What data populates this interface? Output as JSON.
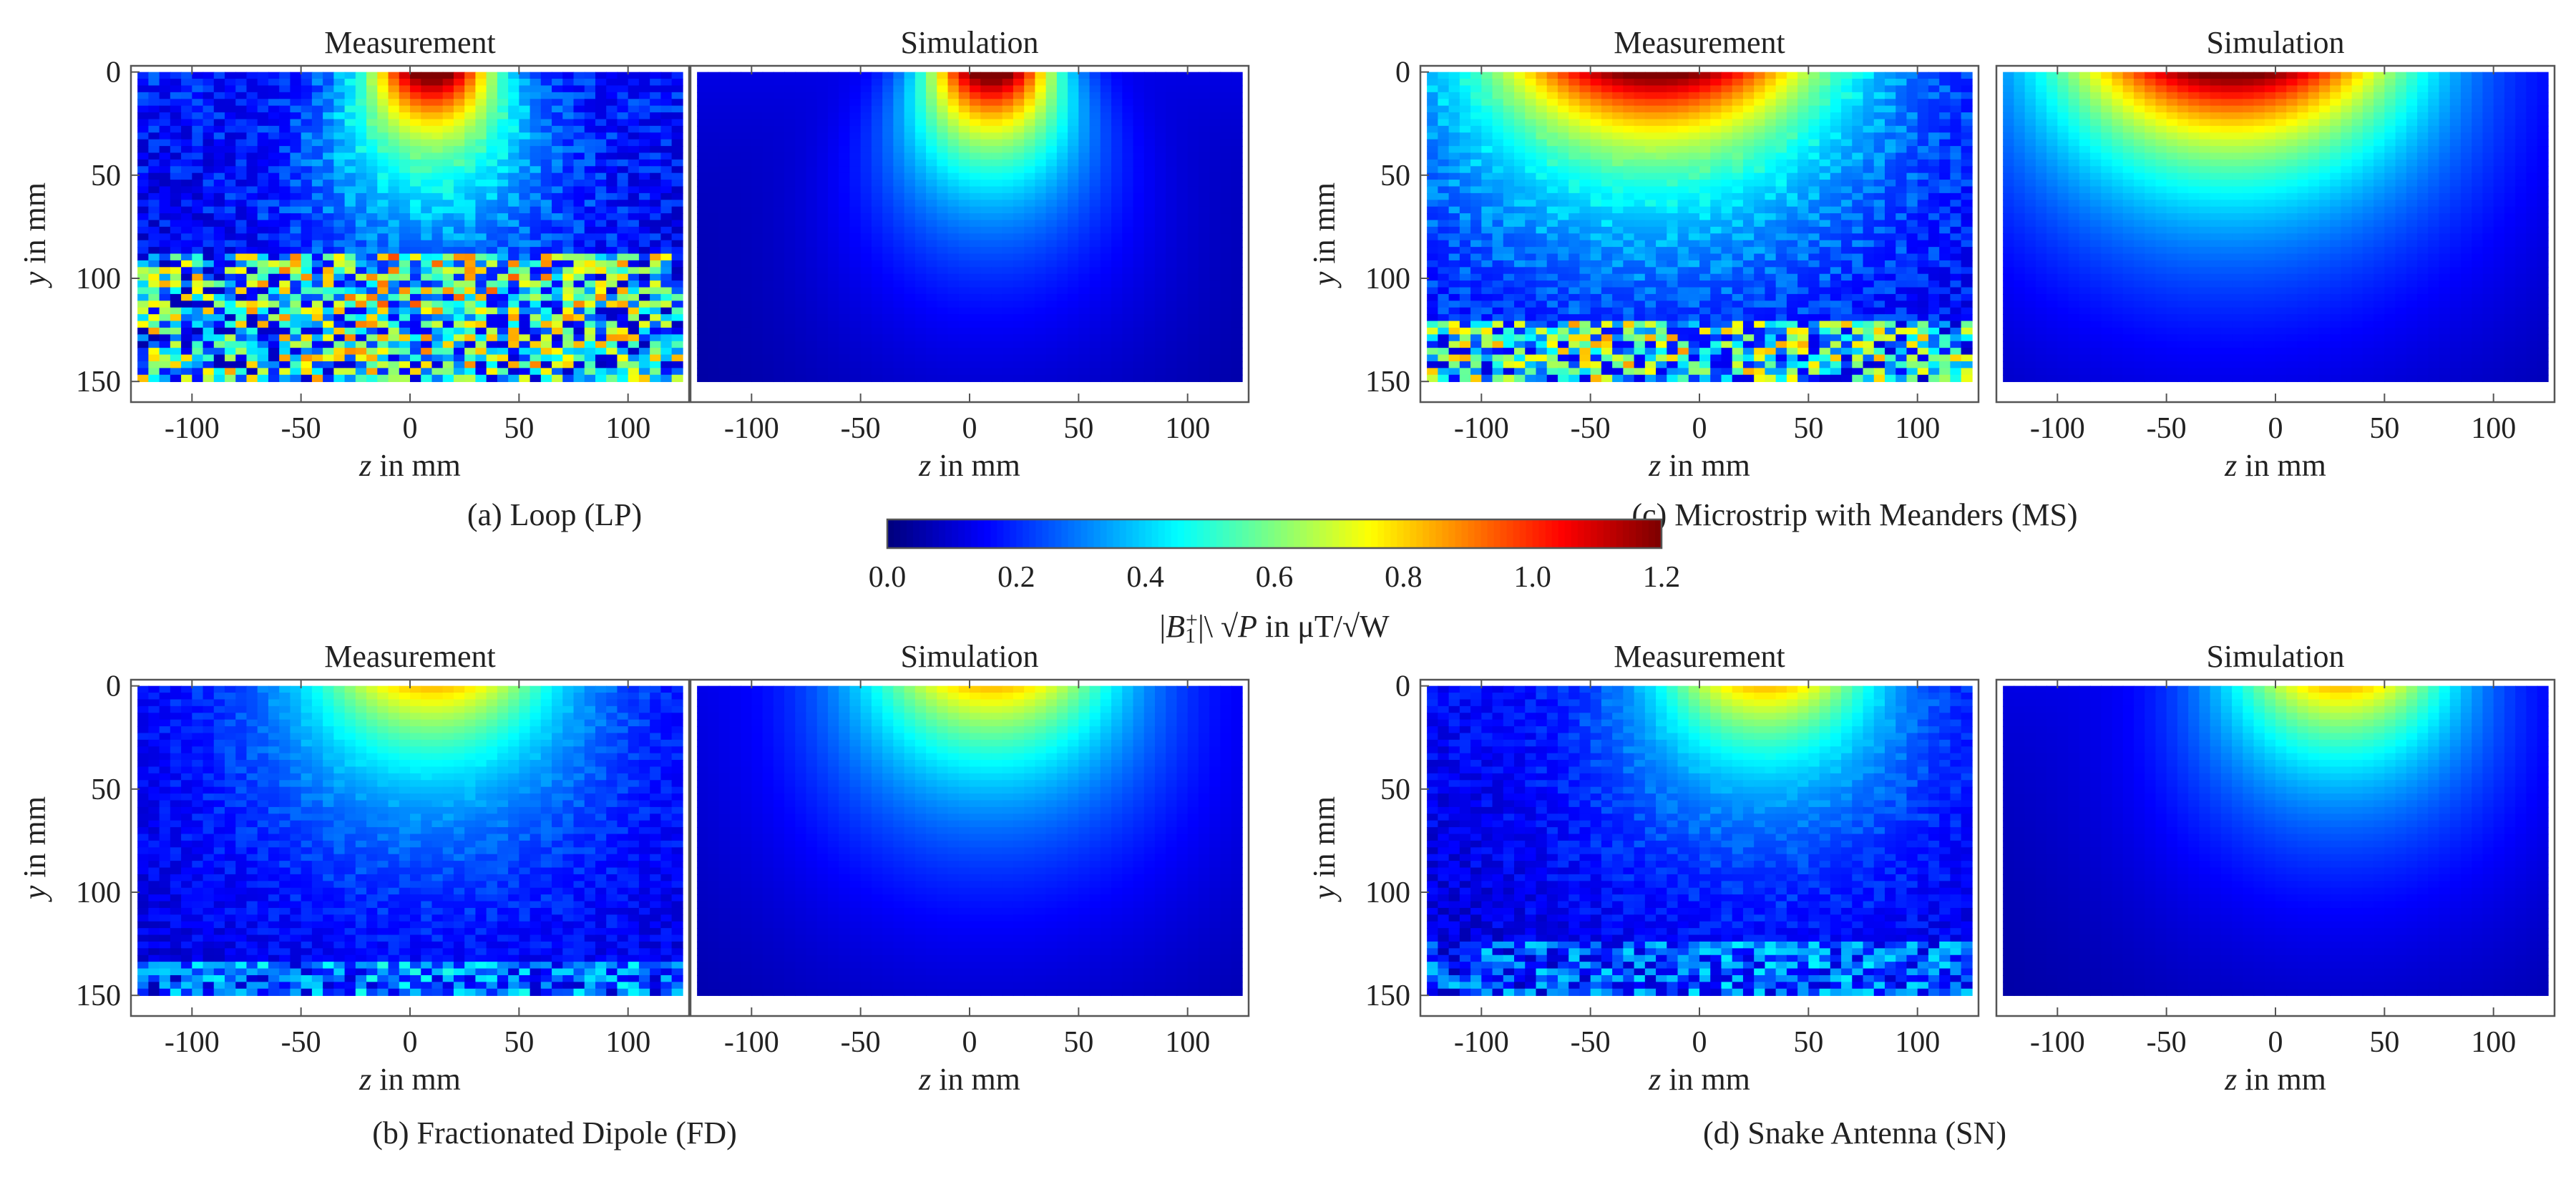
{
  "chart_data": {
    "type": "heatmap",
    "colormap": "jet",
    "colorbar": {
      "label_parts": [
        "|",
        "B",
        "1",
        "+",
        "|\\ √",
        "P",
        " in μT/√W"
      ],
      "ticks": [
        "0.0",
        "0.2",
        "0.4",
        "0.6",
        "0.8",
        "1.0",
        "1.2"
      ],
      "min": 0.0,
      "max": 1.2
    },
    "axis_labels": {
      "x_var": "z",
      "x_unit": " in mm",
      "y_var": "y",
      "y_unit": " in mm"
    },
    "x_ticks": [
      {
        "value": -100,
        "label": "-100"
      },
      {
        "value": -50,
        "label": "-50"
      },
      {
        "value": 0,
        "label": "0"
      },
      {
        "value": 50,
        "label": "50"
      },
      {
        "value": 100,
        "label": "100"
      }
    ],
    "y_ticks": [
      {
        "value": 0,
        "label": "0"
      },
      {
        "value": 50,
        "label": "50"
      },
      {
        "value": 100,
        "label": "100"
      },
      {
        "value": 150,
        "label": "150"
      }
    ],
    "xlim": [
      -128,
      128
    ],
    "ylim": [
      -3,
      160
    ],
    "data_extent": {
      "z": [
        -125,
        125
      ],
      "y": [
        0,
        150
      ]
    },
    "panel_titles": {
      "measurement": "Measurement",
      "simulation": "Simulation"
    },
    "groups": [
      {
        "id": "a",
        "caption": "(a) Loop (LP)",
        "peak_value": 1.2,
        "field_width_mm": 30,
        "field_decay_mm": 38,
        "peak_center_mm": 10,
        "noise_mean": 0.33,
        "noise_strong_beyond_y_mm": 88,
        "noise_strong_amplitude": 0.75
      },
      {
        "id": "b",
        "caption": "(b) Fractionated Dipole (FD)",
        "peak_value": 0.72,
        "field_width_mm": 62,
        "field_decay_mm": 48,
        "peak_center_mm": 10,
        "noise_mean": 0.18,
        "noise_strong_beyond_y_mm": 135,
        "noise_strong_amplitude": 0.35
      },
      {
        "id": "c",
        "caption": "(c) Microstrip with Meanders (MS)",
        "peak_value": 1.15,
        "field_width_mm": 80,
        "field_decay_mm": 45,
        "peak_center_mm": -20,
        "noise_mean": 0.3,
        "noise_strong_beyond_y_mm": 120,
        "noise_strong_amplitude": 0.7
      },
      {
        "id": "d",
        "caption": "(d) Snake Antenna (SN)",
        "peak_value": 0.72,
        "field_width_mm": 55,
        "field_decay_mm": 45,
        "peak_center_mm": 30,
        "noise_mean": 0.18,
        "noise_strong_beyond_y_mm": 125,
        "noise_strong_amplitude": 0.3
      }
    ]
  }
}
